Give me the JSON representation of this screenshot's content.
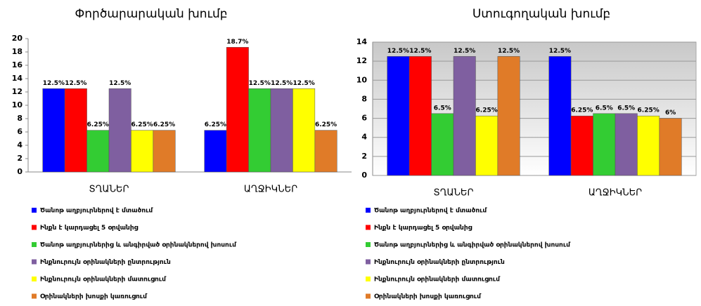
{
  "chart_data": [
    {
      "type": "bar",
      "title": "Փործարարական խումբ",
      "categories": [
        "ՏՂԱՆԵՐ",
        "ԱՂՋԻԿՆԵՐ"
      ],
      "series": [
        {
          "name": "Ծանոթ աղբյուրներով է մտածում",
          "color": "#0000ff",
          "values": [
            12.5,
            6.25
          ],
          "value_labels": [
            "12.5%",
            "6.25%"
          ]
        },
        {
          "name": "Ինքն է կարդացել 5 օրվանից",
          "color": "#ff0000",
          "values": [
            12.5,
            18.7
          ],
          "value_labels": [
            "12.5%",
            "18.7%"
          ]
        },
        {
          "name": "Ծանոթ աղբյուրներից և անգիրված օրինակներով խոսում",
          "color": "#33cc33",
          "values": [
            6.25,
            12.5
          ],
          "value_labels": [
            "6.25%",
            "12.5%"
          ]
        },
        {
          "name": "Ինքնուրույն օրինակների ընտրություն",
          "color": "#7f5fa0",
          "values": [
            12.5,
            12.5
          ],
          "value_labels": [
            "12.5%",
            "12.5%"
          ]
        },
        {
          "name": "Ինքնուրույն օրինակների մատուցում",
          "color": "#ffff00",
          "values": [
            6.25,
            12.5
          ],
          "value_labels": [
            "6.25%",
            "12.5%"
          ]
        },
        {
          "name": "Օրինակների խոսքի կառուցում",
          "color": "#e07b28",
          "values": [
            6.25,
            6.25
          ],
          "value_labels": [
            "6.25%",
            "6.25%"
          ]
        }
      ],
      "ylim": [
        0,
        20
      ],
      "yticks": [
        0,
        2,
        4,
        6,
        8,
        10,
        12,
        14,
        16,
        18,
        20
      ],
      "grid": false
    },
    {
      "type": "bar",
      "title": "Ստուգողական խումբ",
      "categories": [
        "ՏՂԱՆԵՐ",
        "ԱՂՋԻԿՆԵՐ"
      ],
      "series": [
        {
          "name": "Ծանոթ աղբյուրներով է մտածում",
          "color": "#0000ff",
          "values": [
            12.5,
            12.5
          ],
          "value_labels": [
            "12.5%",
            "12.5%"
          ]
        },
        {
          "name": "Ինքն է կարդացել 5 օրվանից",
          "color": "#ff0000",
          "values": [
            12.5,
            6.25
          ],
          "value_labels": [
            "12.5%",
            "6.25%"
          ]
        },
        {
          "name": "Ծանոթ աղբյուրներից և անգիրված օրինակներով խոսում",
          "color": "#33cc33",
          "values": [
            6.5,
            6.5
          ],
          "value_labels": [
            "6.5%",
            "6.5%"
          ]
        },
        {
          "name": "Ինքնուրույն օրինակների ընտրություն",
          "color": "#7f5fa0",
          "values": [
            12.5,
            6.5
          ],
          "value_labels": [
            "12.5%",
            "6.5%"
          ]
        },
        {
          "name": "Ինքնուրույն օրինակների մատուցում",
          "color": "#ffff00",
          "values": [
            6.25,
            6.25
          ],
          "value_labels": [
            "6.25%",
            "6.25%"
          ]
        },
        {
          "name": "Օրինակների խոսքի կառուցում",
          "color": "#e07b28",
          "values": [
            12.5,
            6
          ],
          "value_labels": [
            "12.5%",
            "6%"
          ]
        }
      ],
      "ylim": [
        0,
        14
      ],
      "yticks": [
        0,
        2,
        4,
        6,
        8,
        10,
        12,
        14
      ],
      "grid": true
    }
  ]
}
